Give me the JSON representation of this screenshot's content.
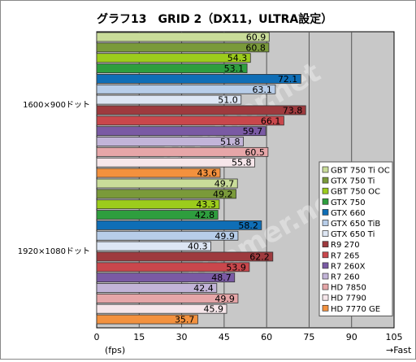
{
  "chart_data": {
    "type": "bar",
    "orientation": "horizontal",
    "title": "グラフ13　GRID 2（DX11，ULTRA設定）",
    "categories": [
      "1600×900ドット",
      "1920×1080ドット"
    ],
    "xlabel": "(fps)",
    "x_tick_labels": [
      "0",
      "15",
      "30",
      "45",
      "60",
      "75",
      "90",
      "105"
    ],
    "xlim": [
      0,
      105
    ],
    "fast_label": "→Fast",
    "grid": true,
    "legend_position": "right-bottom-inside",
    "series": [
      {
        "name": "GBT 750 Ti OC",
        "color": "#c9dc99",
        "values": [
          60.9,
          49.7
        ]
      },
      {
        "name": "GTX 750 Ti",
        "color": "#7a9a3a",
        "values": [
          60.8,
          49.2
        ]
      },
      {
        "name": "GBT 750 OC",
        "color": "#9ccc1c",
        "values": [
          54.3,
          43.3
        ]
      },
      {
        "name": "GTX 750",
        "color": "#2e9e3e",
        "values": [
          53.1,
          42.8
        ]
      },
      {
        "name": "GTX 660",
        "color": "#0f6eb6",
        "values": [
          72.1,
          58.2
        ]
      },
      {
        "name": "GTX 650 TiB",
        "color": "#b7cde9",
        "values": [
          63.1,
          49.9
        ]
      },
      {
        "name": "GTX 650 Ti",
        "color": "#dde6f4",
        "values": [
          51.0,
          40.3
        ]
      },
      {
        "name": "R9 270",
        "color": "#9e3a3e",
        "values": [
          73.8,
          62.2
        ]
      },
      {
        "name": "R7 265",
        "color": "#c9474c",
        "values": [
          66.1,
          53.9
        ]
      },
      {
        "name": "R7 260X",
        "color": "#7a5aa4",
        "values": [
          59.7,
          48.7
        ]
      },
      {
        "name": "R7 260",
        "color": "#c2b4d8",
        "values": [
          51.8,
          42.4
        ]
      },
      {
        "name": "HD 7850",
        "color": "#e6a6a8",
        "values": [
          60.5,
          49.9
        ]
      },
      {
        "name": "HD 7790",
        "color": "#f6e6ea",
        "values": [
          55.8,
          45.9
        ]
      },
      {
        "name": "HD 7770 GE",
        "color": "#f3913e",
        "values": [
          43.6,
          35.7
        ]
      }
    ]
  },
  "watermark": "4Gamer.net"
}
